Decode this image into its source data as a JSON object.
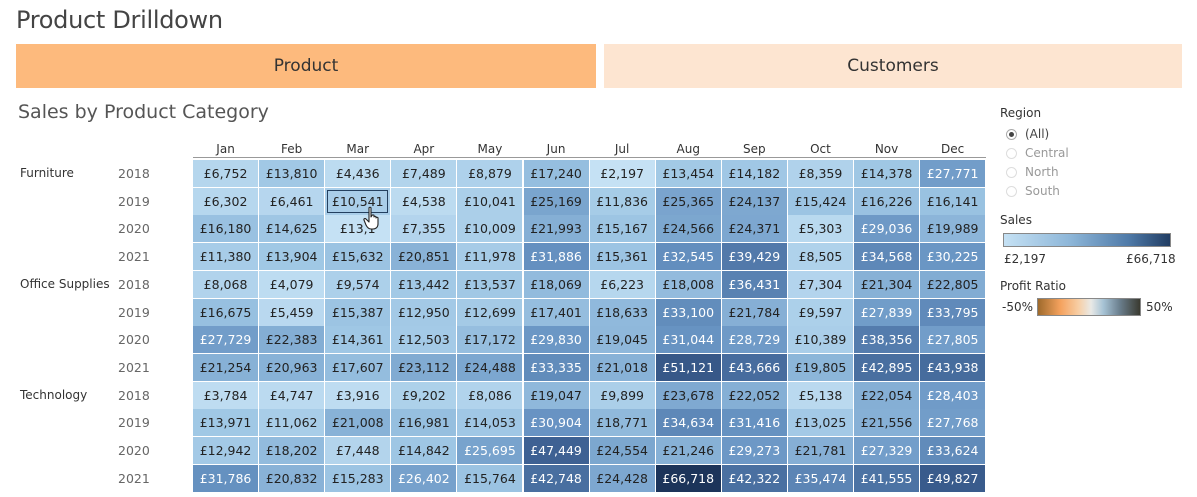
{
  "page": {
    "title": "Product Drilldown"
  },
  "tabs": [
    {
      "label": "Product"
    },
    {
      "label": "Customers"
    }
  ],
  "section": {
    "title": "Sales by Product Category"
  },
  "months": [
    "Jan",
    "Feb",
    "Mar",
    "Apr",
    "May",
    "Jun",
    "Jul",
    "Aug",
    "Sep",
    "Oct",
    "Nov",
    "Dec"
  ],
  "categories": [
    {
      "name": "Furniture",
      "rows": [
        {
          "year": "2018",
          "cells": [
            "£6,752",
            "£13,810",
            "£4,436",
            "£7,489",
            "£8,879",
            "£17,240",
            "£2,197",
            "£13,454",
            "£14,182",
            "£8,359",
            "£14,378",
            "£27,771"
          ]
        },
        {
          "year": "2019",
          "cells": [
            "£6,302",
            "£6,461",
            "£10,541",
            "£4,538",
            "£10,041",
            "£25,169",
            "£11,836",
            "£25,365",
            "£24,137",
            "£15,424",
            "£16,226",
            "£16,141"
          ]
        },
        {
          "year": "2020",
          "cells": [
            "£16,180",
            "£14,625",
            "£13,1",
            "£7,355",
            "£10,009",
            "£21,993",
            "£15,167",
            "£24,566",
            "£24,371",
            "£5,303",
            "£29,036",
            "£19,989"
          ]
        },
        {
          "year": "2021",
          "cells": [
            "£11,380",
            "£13,904",
            "£15,632",
            "£20,851",
            "£11,978",
            "£31,886",
            "£15,361",
            "£32,545",
            "£39,429",
            "£8,505",
            "£34,568",
            "£30,225"
          ]
        }
      ]
    },
    {
      "name": "Office Supplies",
      "rows": [
        {
          "year": "2018",
          "cells": [
            "£8,068",
            "£4,079",
            "£9,574",
            "£13,442",
            "£13,537",
            "£18,069",
            "£6,223",
            "£18,008",
            "£36,431",
            "£7,304",
            "£21,304",
            "£22,805"
          ]
        },
        {
          "year": "2019",
          "cells": [
            "£16,675",
            "£5,459",
            "£15,387",
            "£12,950",
            "£12,699",
            "£17,401",
            "£18,633",
            "£33,100",
            "£21,784",
            "£9,597",
            "£27,839",
            "£33,795"
          ]
        },
        {
          "year": "2020",
          "cells": [
            "£27,729",
            "£22,383",
            "£14,361",
            "£12,503",
            "£17,172",
            "£29,830",
            "£19,045",
            "£31,044",
            "£28,729",
            "£10,389",
            "£38,356",
            "£27,805"
          ]
        },
        {
          "year": "2021",
          "cells": [
            "£21,254",
            "£20,963",
            "£17,607",
            "£23,112",
            "£24,488",
            "£33,335",
            "£21,018",
            "£51,121",
            "£43,666",
            "£19,805",
            "£42,895",
            "£43,938"
          ]
        }
      ]
    },
    {
      "name": "Technology",
      "rows": [
        {
          "year": "2018",
          "cells": [
            "£3,784",
            "£4,747",
            "£3,916",
            "£9,202",
            "£8,086",
            "£19,047",
            "£9,899",
            "£23,678",
            "£22,052",
            "£5,138",
            "£22,054",
            "£28,403"
          ]
        },
        {
          "year": "2019",
          "cells": [
            "£13,971",
            "£11,062",
            "£21,008",
            "£16,981",
            "£14,053",
            "£30,904",
            "£18,771",
            "£34,634",
            "£31,416",
            "£13,025",
            "£21,556",
            "£27,768"
          ]
        },
        {
          "year": "2020",
          "cells": [
            "£12,942",
            "£18,202",
            "£7,448",
            "£14,842",
            "£25,695",
            "£47,449",
            "£24,554",
            "£21,246",
            "£29,273",
            "£21,781",
            "£27,329",
            "£33,624"
          ]
        },
        {
          "year": "2021",
          "cells": [
            "£31,786",
            "£20,832",
            "£15,283",
            "£26,402",
            "£15,764",
            "£42,748",
            "£24,428",
            "£66,718",
            "£42,322",
            "£35,474",
            "£41,555",
            "£49,827"
          ]
        }
      ]
    }
  ],
  "sidebar": {
    "region": {
      "label": "Region",
      "options": [
        {
          "label": "(All)",
          "selected": true
        },
        {
          "label": "Central",
          "selected": false
        },
        {
          "label": "North",
          "selected": false
        },
        {
          "label": "South",
          "selected": false
        }
      ]
    },
    "sales_legend": {
      "label": "Sales",
      "min": "£2,197",
      "max": "£66,718"
    },
    "profit_legend": {
      "label": "Profit Ratio",
      "min": "-50%",
      "max": "50%"
    }
  },
  "colors": {
    "tab_active": "#fdba7d",
    "tab_inactive": "#fde5d1",
    "sales_low": "#c5e1f4",
    "sales_high": "#213d63"
  },
  "selected_cell": {
    "category": "Furniture",
    "year": "2019",
    "month": "Mar"
  }
}
